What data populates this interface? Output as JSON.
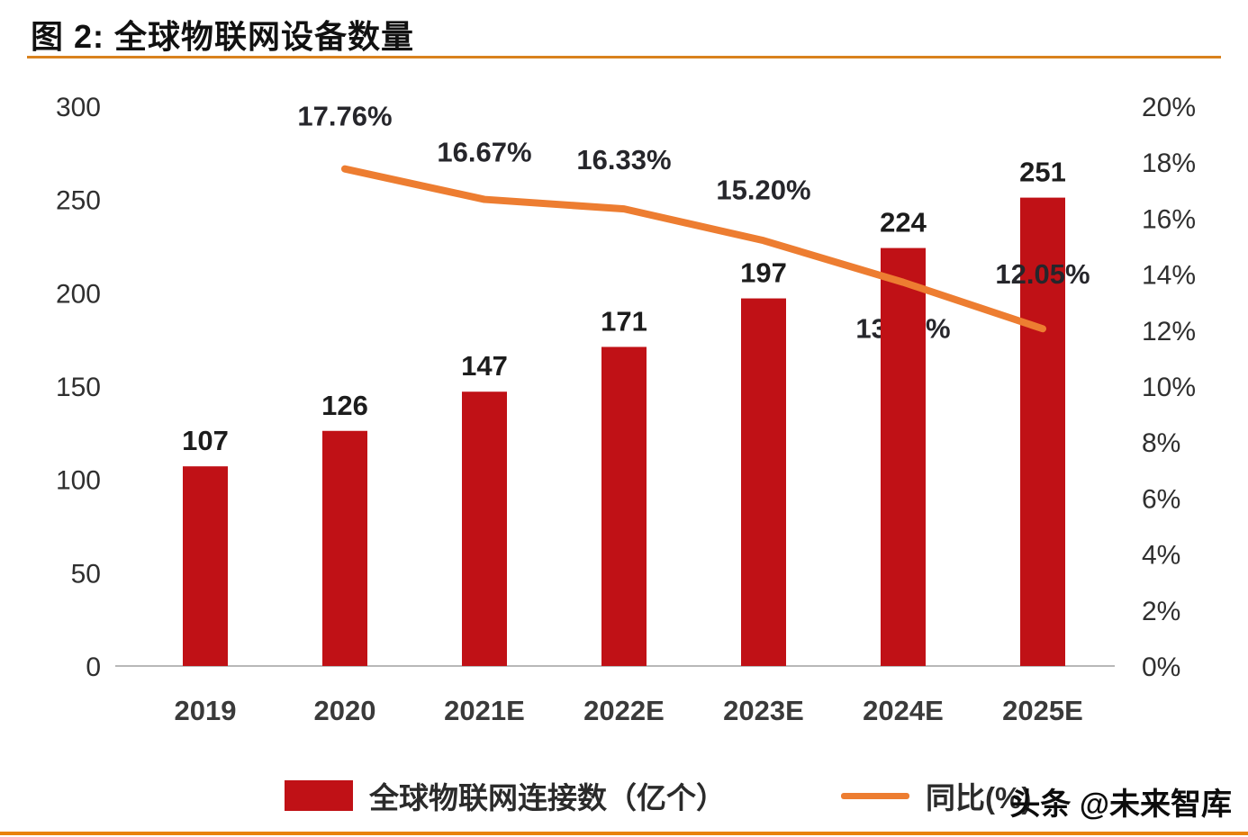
{
  "title": "图 2:  全球物联网设备数量",
  "watermark": "头条 @未来智库",
  "colors": {
    "bar": "#c01116",
    "line": "#ed7d31",
    "accent_rule": "#d9821e",
    "axis_line": "#b8b8b8",
    "label_text": "#26262b",
    "tick_text": "#2f2f2f"
  },
  "chart_data": {
    "type": "bar",
    "title": "全球物联网设备数量",
    "categories": [
      "2019",
      "2020",
      "2021E",
      "2022E",
      "2023E",
      "2024E",
      "2025E"
    ],
    "series": [
      {
        "name": "全球物联网连接数（亿个）",
        "type": "bar",
        "axis": "left",
        "values": [
          107,
          126,
          147,
          171,
          197,
          224,
          251
        ],
        "labels": [
          "107",
          "126",
          "147",
          "171",
          "197",
          "224",
          "251"
        ]
      },
      {
        "name": "同比(%)",
        "type": "line",
        "axis": "right",
        "values": [
          null,
          17.76,
          16.67,
          16.33,
          15.2,
          13.71,
          12.05
        ],
        "labels": [
          "",
          "17.76%",
          "16.67%",
          "16.33%",
          "15.20%",
          "13.71%",
          "12.05%"
        ]
      }
    ],
    "left_axis": {
      "ticks": [
        0,
        50,
        100,
        150,
        200,
        250,
        300
      ],
      "min": 0,
      "max": 300
    },
    "right_axis": {
      "ticks": [
        "0%",
        "2%",
        "4%",
        "6%",
        "8%",
        "10%",
        "12%",
        "14%",
        "16%",
        "18%",
        "20%"
      ],
      "min": 0,
      "max": 20
    },
    "legend_position": "bottom",
    "grid": false
  }
}
